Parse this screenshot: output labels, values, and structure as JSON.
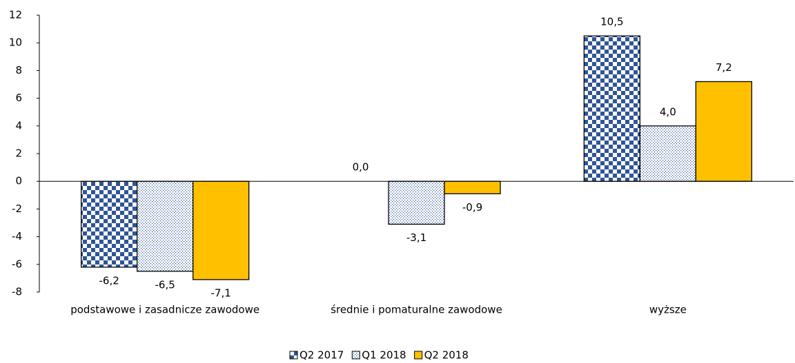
{
  "chart_data": {
    "type": "bar",
    "categories": [
      "podstawowe i zasadnicze zawodowe",
      "średnie i pomaturalne zawodowe",
      "wyższe"
    ],
    "series": [
      {
        "name": "Q2 2017",
        "color": "#2f5597",
        "pattern": "checker",
        "values": [
          -6.2,
          0.0,
          10.5
        ],
        "value_labels": [
          "-6,2",
          "0,0",
          "10,5"
        ]
      },
      {
        "name": "Q1 2018",
        "color": "#2f5597",
        "pattern": "dots",
        "values": [
          -6.5,
          -3.1,
          4.0
        ],
        "value_labels": [
          "-6,5",
          "-3,1",
          "4,0"
        ]
      },
      {
        "name": "Q2 2018",
        "color": "#ffc000",
        "pattern": "solid",
        "values": [
          -7.1,
          -0.9,
          7.2
        ],
        "value_labels": [
          "-7,1",
          "-0,9",
          "7,2"
        ]
      }
    ],
    "ylim": [
      -8,
      12
    ],
    "yticks": [
      -8,
      -6,
      -4,
      -2,
      0,
      2,
      4,
      6,
      8,
      10,
      12
    ],
    "grid": false,
    "legend": "bottom"
  }
}
